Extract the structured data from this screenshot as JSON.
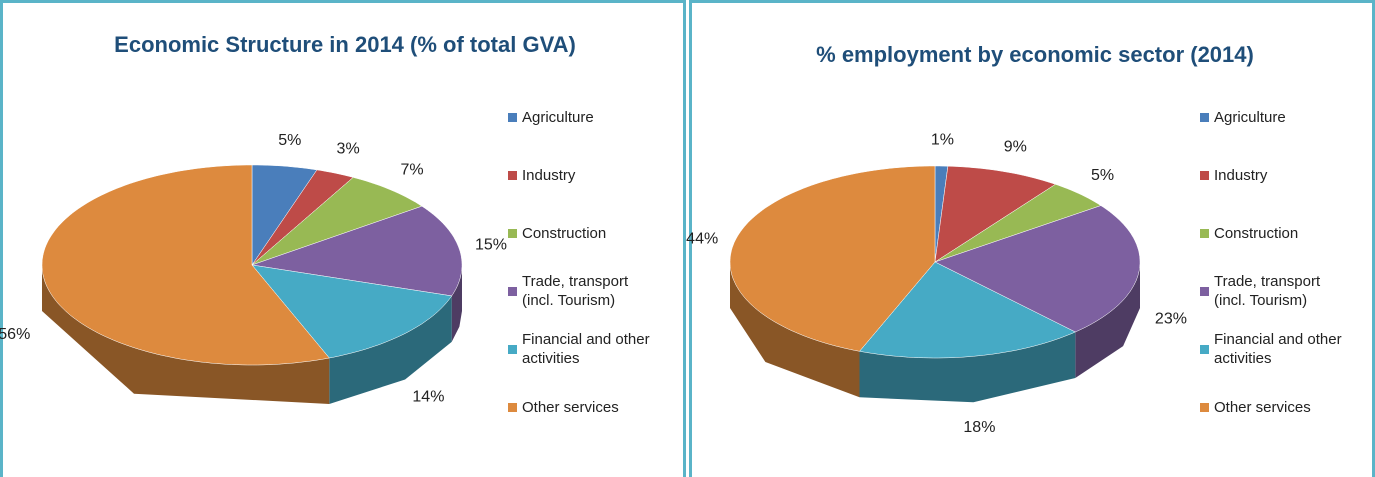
{
  "chart_data": [
    {
      "type": "pie3d",
      "title": "Economic Structure in 2014 (% of total GVA)",
      "categories": [
        "Agriculture",
        "Industry",
        "Construction",
        "Trade, transport (incl. Tourism)",
        "Financial and other activities",
        "Other services"
      ],
      "values": [
        5,
        3,
        7,
        15,
        14,
        56
      ],
      "value_labels": [
        "5%",
        "3%",
        "7%",
        "15%",
        "14%",
        "56%"
      ],
      "colors": [
        "#4a7ebb",
        "#be4b48",
        "#98b954",
        "#7d60a0",
        "#46aac5",
        "#dd8a3e"
      ],
      "legend": "right"
    },
    {
      "type": "pie3d",
      "title": "% employment by economic sector (2014)",
      "categories": [
        "Agriculture",
        "Industry",
        "Construction",
        "Trade, transport (incl. Tourism)",
        "Financial and other activities",
        "Other services"
      ],
      "values": [
        1,
        9,
        5,
        23,
        18,
        44
      ],
      "value_labels": [
        "1%",
        "9%",
        "5%",
        "23%",
        "18%",
        "44%"
      ],
      "colors": [
        "#4a7ebb",
        "#be4b48",
        "#98b954",
        "#7d60a0",
        "#46aac5",
        "#dd8a3e"
      ],
      "legend": "right"
    }
  ]
}
